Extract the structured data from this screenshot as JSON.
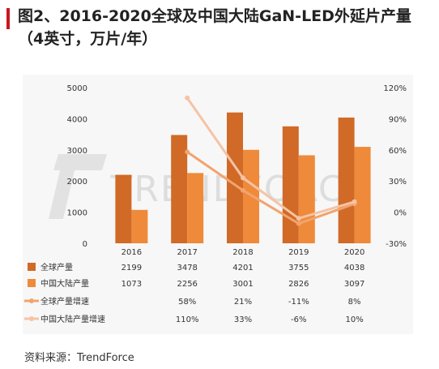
{
  "title": "图2、2016-2020全球及中国大陆GaN-LED外延片产量（4英寸，万片/年）",
  "source": "资料来源：TrendForce",
  "watermark": "TRENDFORCE",
  "colors": {
    "global_bar": "#d06a26",
    "china_bar": "#ee8a3a",
    "global_growth": "#f2a36e",
    "china_growth": "#f6c3a4",
    "accent": "#c8171e"
  },
  "chart_data": {
    "type": "bar",
    "categories": [
      "2016",
      "2017",
      "2018",
      "2019",
      "2020"
    ],
    "left_axis": {
      "ticks": [
        "0",
        "1000",
        "2000",
        "3000",
        "4000",
        "5000"
      ],
      "ylim": [
        0,
        5000
      ]
    },
    "right_axis": {
      "ticks": [
        "-30%",
        "0%",
        "30%",
        "60%",
        "90%",
        "120%"
      ],
      "ylim": [
        -30,
        120
      ]
    },
    "series": [
      {
        "name": "全球产量",
        "type": "bar",
        "axis": "left",
        "values": [
          2199,
          3478,
          4201,
          3755,
          4038
        ],
        "labels": [
          "2199",
          "3478",
          "4201",
          "3755",
          "4038"
        ]
      },
      {
        "name": "中国大陆产量",
        "type": "bar",
        "axis": "left",
        "values": [
          1073,
          2256,
          3001,
          2826,
          3097
        ],
        "labels": [
          "1073",
          "2256",
          "3001",
          "2826",
          "3097"
        ]
      },
      {
        "name": "全球产量增速",
        "type": "line",
        "axis": "right",
        "values": [
          null,
          58,
          21,
          -11,
          8
        ],
        "labels": [
          "",
          "58%",
          "21%",
          "-11%",
          "8%"
        ]
      },
      {
        "name": "中国大陆产量增速",
        "type": "line",
        "axis": "right",
        "values": [
          null,
          110,
          33,
          -6,
          10
        ],
        "labels": [
          "",
          "110%",
          "33%",
          "-6%",
          "10%"
        ]
      }
    ]
  }
}
